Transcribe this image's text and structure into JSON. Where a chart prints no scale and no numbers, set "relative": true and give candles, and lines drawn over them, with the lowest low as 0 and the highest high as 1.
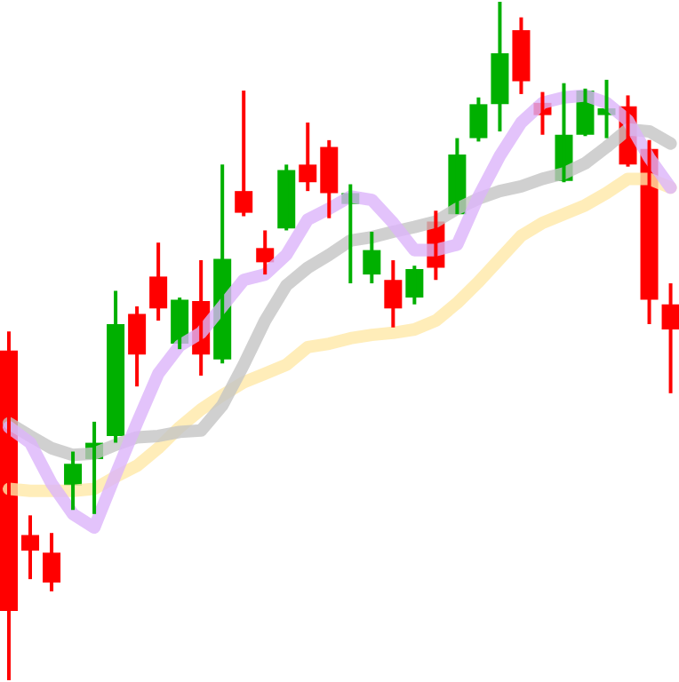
{
  "chart_data": {
    "type": "candlestick",
    "relative": true,
    "categories": [
      null,
      null,
      null,
      null,
      null,
      null,
      null,
      null,
      null,
      null,
      null,
      null,
      null,
      null,
      null,
      null,
      null,
      null,
      null,
      null,
      null,
      null,
      null,
      null,
      null,
      null,
      null,
      null,
      null,
      null,
      null,
      null
    ],
    "ohlc": [
      [
        0.486,
        0.514,
        0,
        0.102
      ],
      [
        0.214,
        0.243,
        0.149,
        0.191
      ],
      [
        0.188,
        0.217,
        0.131,
        0.144
      ],
      [
        0.287,
        0.337,
        0.251,
        0.319
      ],
      [
        0.326,
        0.381,
        0.245,
        0.35
      ],
      [
        0.36,
        0.574,
        0.35,
        0.525
      ],
      [
        0.54,
        0.551,
        0.433,
        0.48
      ],
      [
        0.595,
        0.645,
        0.53,
        0.548
      ],
      [
        0.496,
        0.564,
        0.488,
        0.561
      ],
      [
        0.559,
        0.619,
        0.449,
        0.48
      ],
      [
        0.473,
        0.76,
        0.467,
        0.621
      ],
      [
        0.721,
        0.869,
        0.684,
        0.689
      ],
      [
        0.637,
        0.663,
        0.598,
        0.616
      ],
      [
        0.666,
        0.76,
        0.663,
        0.752
      ],
      [
        0.76,
        0.822,
        0.721,
        0.734
      ],
      [
        0.786,
        0.796,
        0.681,
        0.718
      ],
      [
        0.702,
        0.731,
        0.585,
        0.718
      ],
      [
        0.598,
        0.661,
        0.585,
        0.634
      ],
      [
        0.59,
        0.619,
        0.52,
        0.548
      ],
      [
        0.564,
        0.611,
        0.554,
        0.606
      ],
      [
        0.676,
        0.692,
        0.59,
        0.608
      ],
      [
        0.687,
        0.799,
        0.687,
        0.775
      ],
      [
        0.799,
        0.859,
        0.794,
        0.849
      ],
      [
        0.849,
        1,
        0.809,
        0.924
      ],
      [
        0.958,
        0.977,
        0.864,
        0.883
      ],
      [
        0.851,
        0.867,
        0.804,
        0.833
      ],
      [
        0.736,
        0.88,
        0.734,
        0.804
      ],
      [
        0.804,
        0.872,
        0.802,
        0.869
      ],
      [
        0.833,
        0.885,
        0.799,
        0.843
      ],
      [
        0.846,
        0.862,
        0.757,
        0.76
      ],
      [
        0.783,
        0.796,
        0.525,
        0.561
      ],
      [
        0.554,
        0.585,
        0.423,
        0.517
      ]
    ],
    "colors": [
      "#ff0000",
      "#ff0000",
      "#ff0000",
      "#00b000",
      "#00b000",
      "#00b000",
      "#ff0000",
      "#ff0000",
      "#00b000",
      "#ff0000",
      "#00b000",
      "#ff0000",
      "#ff0000",
      "#00b000",
      "#ff0000",
      "#ff0000",
      "#00b000",
      "#00b000",
      "#ff0000",
      "#00b000",
      "#ff0000",
      "#00b000",
      "#00b000",
      "#00b000",
      "#ff0000",
      "#ff0000",
      "#00b000",
      "#00b000",
      "#00b000",
      "#ff0000",
      "#ff0000",
      "#ff0000"
    ],
    "series": [
      {
        "type": "line",
        "color": "#ffe8a8",
        "values": [
          0.282,
          0.279,
          0.279,
          0.279,
          0.282,
          0.3,
          0.316,
          0.342,
          0.373,
          0.399,
          0.42,
          0.439,
          0.452,
          0.465,
          0.491,
          0.496,
          0.504,
          0.509,
          0.512,
          0.517,
          0.53,
          0.556,
          0.587,
          0.621,
          0.655,
          0.674,
          0.687,
          0.7,
          0.718,
          0.739,
          0.739,
          0.726
        ]
      },
      {
        "type": "line",
        "color": "#c4c4c4",
        "values": [
          0.379,
          0.36,
          0.342,
          0.332,
          0.334,
          0.347,
          0.358,
          0.36,
          0.366,
          0.368,
          0.405,
          0.465,
          0.53,
          0.582,
          0.608,
          0.627,
          0.648,
          0.653,
          0.661,
          0.668,
          0.676,
          0.695,
          0.71,
          0.721,
          0.728,
          0.739,
          0.747,
          0.762,
          0.786,
          0.812,
          0.809,
          0.791
        ]
      },
      {
        "type": "line",
        "color": "#dcb4fa",
        "values": [
          0.373,
          0.35,
          0.29,
          0.245,
          0.225,
          0.303,
          0.379,
          0.452,
          0.493,
          0.512,
          0.551,
          0.59,
          0.598,
          0.627,
          0.679,
          0.695,
          0.713,
          0.708,
          0.674,
          0.634,
          0.634,
          0.642,
          0.713,
          0.773,
          0.822,
          0.851,
          0.859,
          0.862,
          0.851,
          0.825,
          0.77,
          0.726
        ]
      }
    ]
  }
}
